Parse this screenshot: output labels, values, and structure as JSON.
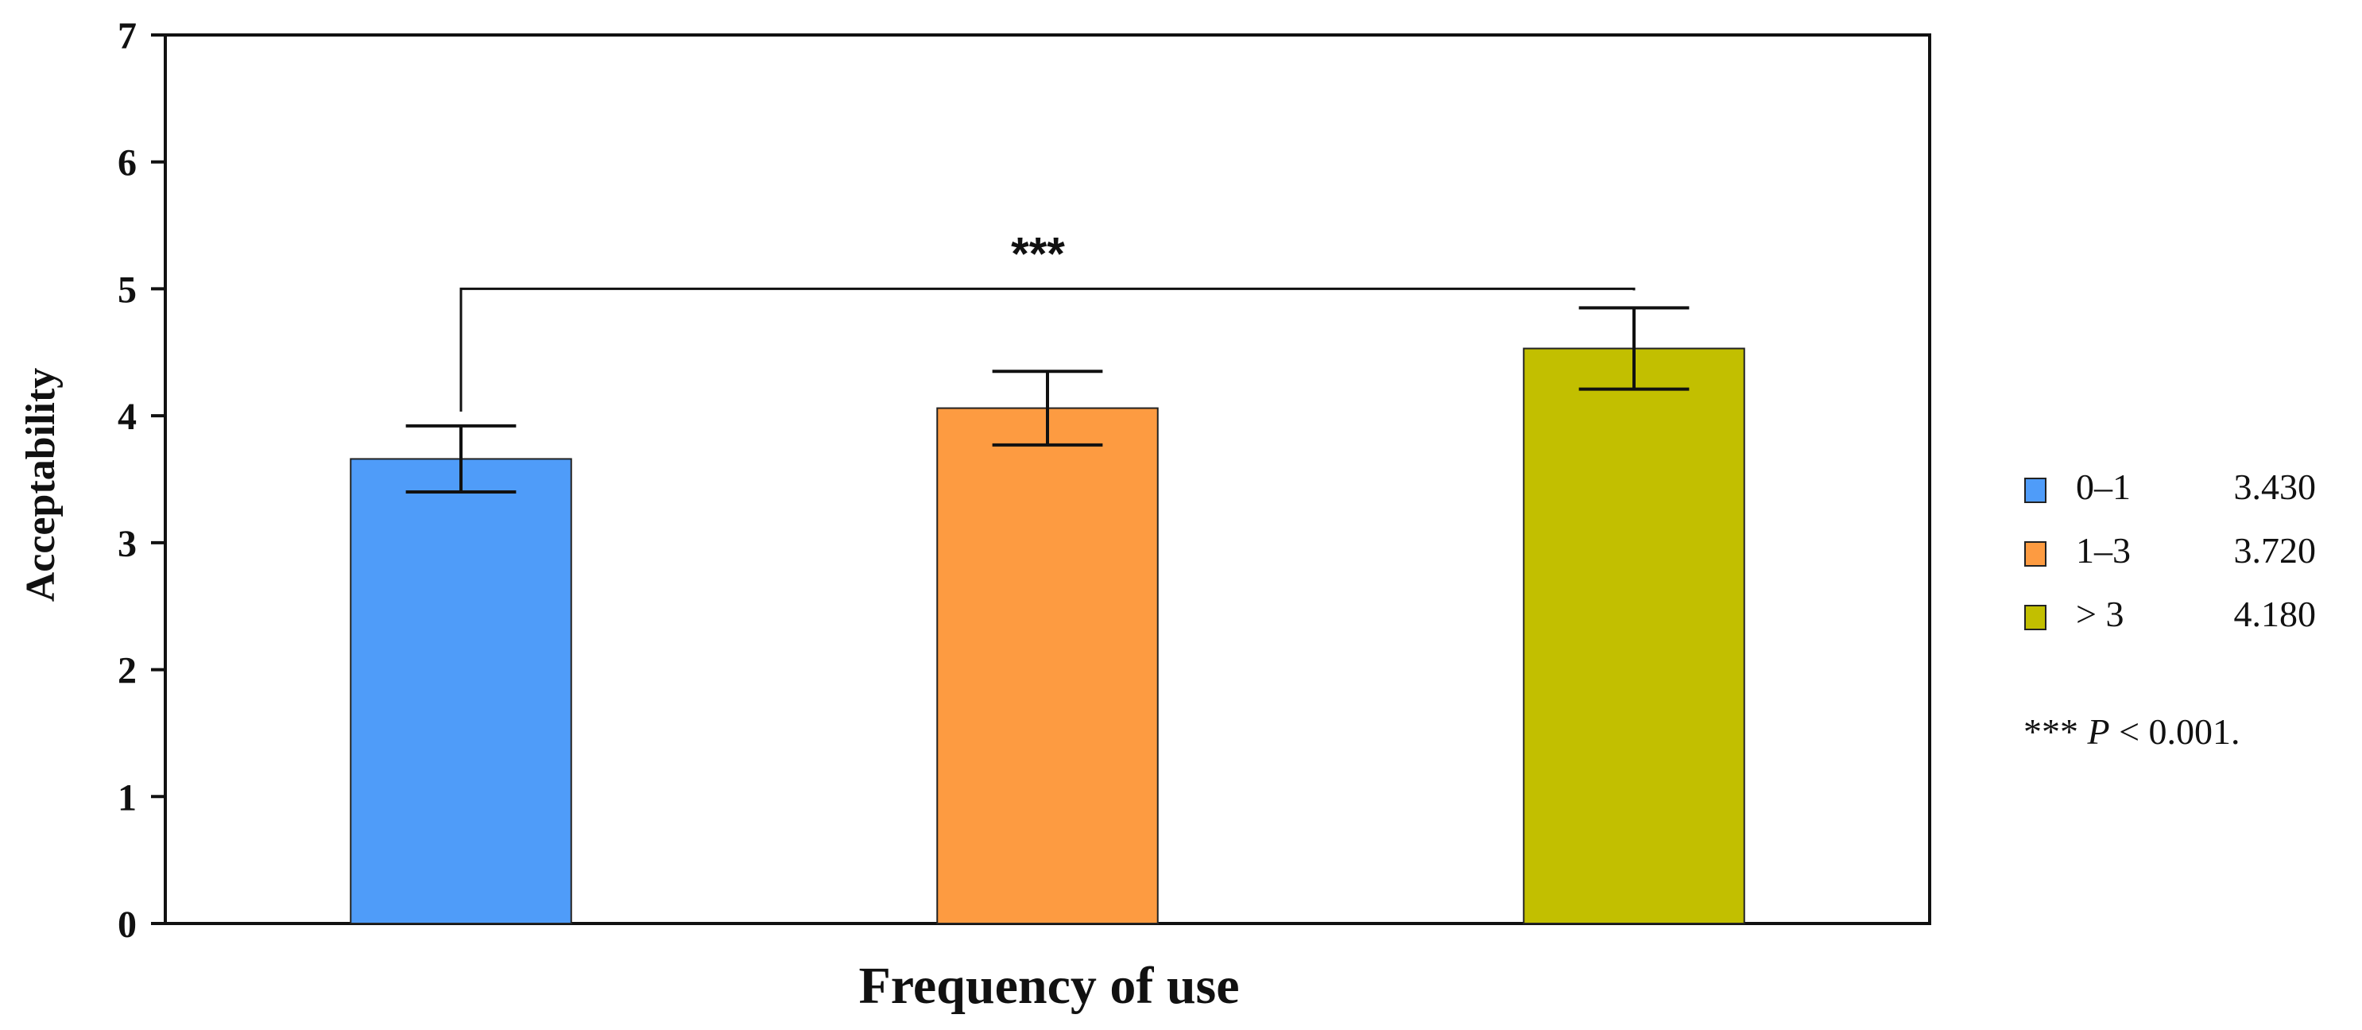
{
  "chart_data": {
    "type": "bar",
    "xlabel": "Frequency of use",
    "ylabel": "Acceptability",
    "ylim": [
      0,
      7
    ],
    "yticks": [
      "0",
      "1",
      "2",
      "3",
      "4",
      "5",
      "6",
      "7"
    ],
    "categories": [
      "0–1",
      "1–3",
      "> 3"
    ],
    "values": [
      3.66,
      4.06,
      4.53
    ],
    "error": [
      0.26,
      0.29,
      0.32
    ],
    "colors": [
      "#4f9cf9",
      "#fd9b41",
      "#c2bf00"
    ],
    "legend": {
      "placement": "right",
      "entries": [
        {
          "label": "0–1",
          "value": "3.430",
          "color": "#4f9cf9"
        },
        {
          "label": "1–3",
          "value": "3.720",
          "color": "#fd9b41"
        },
        {
          "label": "> 3",
          "value": "4.180",
          "color": "#c2bf00"
        }
      ],
      "note_stars": "***",
      "note_p": "P",
      "note_rest": " < 0.001."
    },
    "significance": {
      "from": 0,
      "to": 2,
      "level": 5.0,
      "label": "***"
    }
  }
}
